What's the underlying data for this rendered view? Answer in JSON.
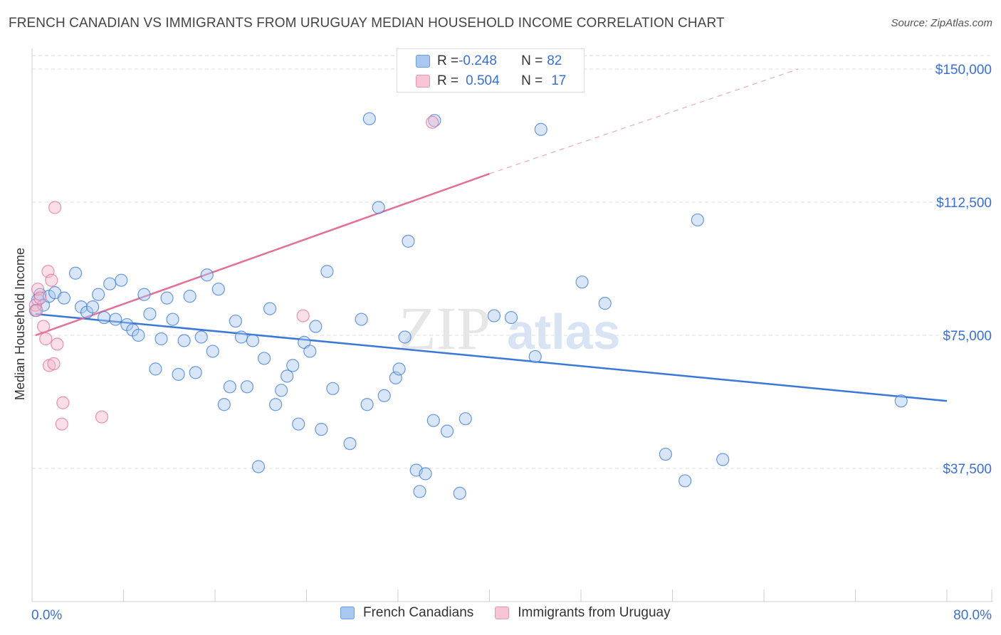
{
  "title": "FRENCH CANADIAN VS IMMIGRANTS FROM URUGUAY MEDIAN HOUSEHOLD INCOME CORRELATION CHART",
  "source": "Source: ZipAtlas.com",
  "watermark": {
    "zip": "ZIP",
    "atlas": "atlas"
  },
  "legend": {
    "rows": [
      {
        "r_label": "R = ",
        "r_value": "-0.248",
        "n_label": "N = ",
        "n_value": "82",
        "color": "#a8c8f0"
      },
      {
        "r_label": "R = ",
        "r_value": "0.504",
        "n_label": "N = ",
        "n_value": "17",
        "color": "#f7b8cb"
      }
    ]
  },
  "chart_data": {
    "type": "scatter",
    "xlabel": "",
    "ylabel": "Median Household Income",
    "xlim": [
      0,
      80
    ],
    "ylim": [
      0,
      150000
    ],
    "x_tick_labels": [
      "0.0%",
      "80.0%"
    ],
    "y_ticks": [
      37500,
      75000,
      112500,
      150000
    ],
    "y_tick_labels": [
      "$37,500",
      "$75,000",
      "$112,500",
      "$150,000"
    ],
    "grid": true,
    "series": [
      {
        "name": "French Canadians",
        "color": "#3a78d8",
        "fill": "#a8c8f0",
        "trend": {
          "x": [
            0.3,
            80
          ],
          "y": [
            81000,
            56500
          ]
        },
        "points": [
          [
            0.3,
            82000
          ],
          [
            0.5,
            85000
          ],
          [
            0.7,
            86500
          ],
          [
            1.0,
            83500
          ],
          [
            1.5,
            86000
          ],
          [
            2.0,
            87000
          ],
          [
            2.8,
            85500
          ],
          [
            3.8,
            92500
          ],
          [
            4.3,
            83000
          ],
          [
            4.8,
            81500
          ],
          [
            5.3,
            83000
          ],
          [
            5.8,
            86500
          ],
          [
            6.3,
            80000
          ],
          [
            6.8,
            89500
          ],
          [
            7.3,
            79500
          ],
          [
            7.8,
            90500
          ],
          [
            8.3,
            78000
          ],
          [
            8.8,
            76500
          ],
          [
            9.3,
            75000
          ],
          [
            9.8,
            86500
          ],
          [
            10.3,
            81000
          ],
          [
            10.8,
            65500
          ],
          [
            11.3,
            74000
          ],
          [
            11.8,
            85500
          ],
          [
            12.3,
            79500
          ],
          [
            12.8,
            64000
          ],
          [
            13.3,
            73500
          ],
          [
            13.8,
            86000
          ],
          [
            14.3,
            64500
          ],
          [
            14.8,
            74500
          ],
          [
            15.3,
            92000
          ],
          [
            15.8,
            70500
          ],
          [
            16.3,
            88000
          ],
          [
            16.8,
            55500
          ],
          [
            17.3,
            60500
          ],
          [
            17.8,
            79000
          ],
          [
            18.3,
            74500
          ],
          [
            18.8,
            60500
          ],
          [
            19.3,
            73500
          ],
          [
            19.8,
            38000
          ],
          [
            20.3,
            68500
          ],
          [
            20.8,
            82500
          ],
          [
            21.3,
            55500
          ],
          [
            21.8,
            59500
          ],
          [
            22.3,
            63500
          ],
          [
            22.8,
            66500
          ],
          [
            23.3,
            50000
          ],
          [
            23.8,
            73000
          ],
          [
            24.3,
            70500
          ],
          [
            24.8,
            77500
          ],
          [
            25.3,
            48500
          ],
          [
            25.8,
            93000
          ],
          [
            26.3,
            60000
          ],
          [
            27.8,
            44500
          ],
          [
            28.8,
            79500
          ],
          [
            29.3,
            55500
          ],
          [
            29.5,
            136000
          ],
          [
            30.3,
            111000
          ],
          [
            30.8,
            58000
          ],
          [
            31.8,
            63000
          ],
          [
            32.1,
            65500
          ],
          [
            32.6,
            74500
          ],
          [
            32.9,
            101500
          ],
          [
            33.6,
            37000
          ],
          [
            33.9,
            31000
          ],
          [
            34.4,
            36000
          ],
          [
            35.1,
            51000
          ],
          [
            35.2,
            135500
          ],
          [
            36.3,
            48000
          ],
          [
            37.4,
            30500
          ],
          [
            37.9,
            51500
          ],
          [
            40.4,
            80500
          ],
          [
            41.9,
            80000
          ],
          [
            44.0,
            69000
          ],
          [
            44.5,
            133000
          ],
          [
            48.1,
            90000
          ],
          [
            50.1,
            84000
          ],
          [
            55.4,
            41500
          ],
          [
            57.1,
            34000
          ],
          [
            58.2,
            107500
          ],
          [
            60.4,
            40000
          ],
          [
            76.0,
            56500
          ]
        ]
      },
      {
        "name": "Immigrants from Uruguay",
        "color": "#e46f98",
        "fill": "#f7b8cb",
        "trend": {
          "x": [
            0.3,
            40
          ],
          "y": [
            75000,
            120500
          ]
        },
        "trend_ext": {
          "x": [
            40,
            67
          ],
          "y": [
            120500,
            150000
          ]
        },
        "points": [
          [
            0.3,
            83500
          ],
          [
            0.4,
            82000
          ],
          [
            0.5,
            88000
          ],
          [
            0.7,
            85500
          ],
          [
            1.0,
            77500
          ],
          [
            1.2,
            74000
          ],
          [
            1.4,
            93000
          ],
          [
            1.5,
            66500
          ],
          [
            1.7,
            90500
          ],
          [
            1.9,
            67000
          ],
          [
            2.0,
            111000
          ],
          [
            2.2,
            72500
          ],
          [
            2.6,
            50000
          ],
          [
            2.7,
            56000
          ],
          [
            6.1,
            52000
          ],
          [
            23.7,
            80500
          ],
          [
            35.0,
            135000
          ]
        ]
      }
    ]
  }
}
